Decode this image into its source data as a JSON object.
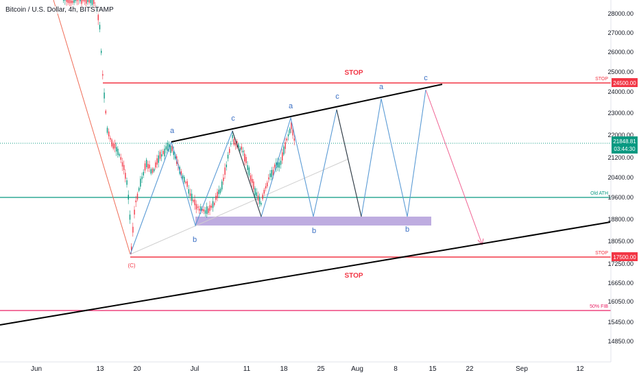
{
  "header": {
    "title": "Bitcoin / U.S. Dollar, 4h, BITSTAMP"
  },
  "chart_data": {
    "type": "line",
    "title": "Bitcoin / U.S. Dollar, 4h, BITSTAMP",
    "y_axis": {
      "ticks": [
        "28000.00",
        "27000.00",
        "26000.00",
        "25000.00",
        "24000.00",
        "23000.00",
        "22000.00",
        "21200.00",
        "20400.00",
        "19600.00",
        "18800.00",
        "18050.00",
        "17250.00",
        "16650.00",
        "16050.00",
        "15450.00",
        "14850.00"
      ],
      "scale": "logarithmic-like price scale"
    },
    "x_axis": {
      "ticks": [
        "Jun",
        "13",
        "20",
        "Jul",
        "11",
        "18",
        "25",
        "Aug",
        "8",
        "15",
        "22",
        "Sep",
        "12"
      ]
    },
    "current_price": {
      "label": "21848.81",
      "countdown": "03:44:30",
      "color": "#089981"
    },
    "levels": [
      {
        "name": "STOP",
        "price_label": "24500.00",
        "value": 24500,
        "color": "#f23645"
      },
      {
        "name": "Old ATH",
        "value": 19700,
        "color": "#089981"
      },
      {
        "name": "STOP",
        "price_label": "17500.00",
        "value": 17500,
        "color": "#f23645"
      },
      {
        "name": "50% FIB",
        "value": 15850,
        "color": "#e91e63"
      }
    ],
    "text_annotations": {
      "stop_upper": "STOP",
      "stop_lower": "STOP",
      "wave_c": "(C)",
      "wave_labels": [
        "a",
        "b",
        "c",
        "a",
        "b",
        "c",
        "a",
        "b",
        "c"
      ]
    },
    "candles_close_approx": [
      {
        "t": "Jun 13",
        "v": 25000
      },
      {
        "t": "Jun 15",
        "v": 22300
      },
      {
        "t": "Jun 18",
        "v": 18900
      },
      {
        "t": "Jun 19",
        "v": 17600
      },
      {
        "t": "Jun 20",
        "v": 20300
      },
      {
        "t": "Jun 24",
        "v": 21300
      },
      {
        "t": "Jun 26",
        "v": 21700
      },
      {
        "t": "Jun 30",
        "v": 18900
      },
      {
        "t": "Jul 1",
        "v": 19000
      },
      {
        "t": "Jul 8",
        "v": 21500
      },
      {
        "t": "Jul 10",
        "v": 20800
      },
      {
        "t": "Jul 13",
        "v": 19200
      },
      {
        "t": "Jul 16",
        "v": 21000
      },
      {
        "t": "Jul 19",
        "v": 22600
      },
      {
        "t": "Jul 20",
        "v": 21900
      }
    ]
  },
  "colors": {
    "wave_line": "#5b9bd5",
    "trendline": "#000000",
    "stop_line": "#f23645",
    "support_zone": "#b39ddb",
    "current_price_line": "#089981"
  }
}
